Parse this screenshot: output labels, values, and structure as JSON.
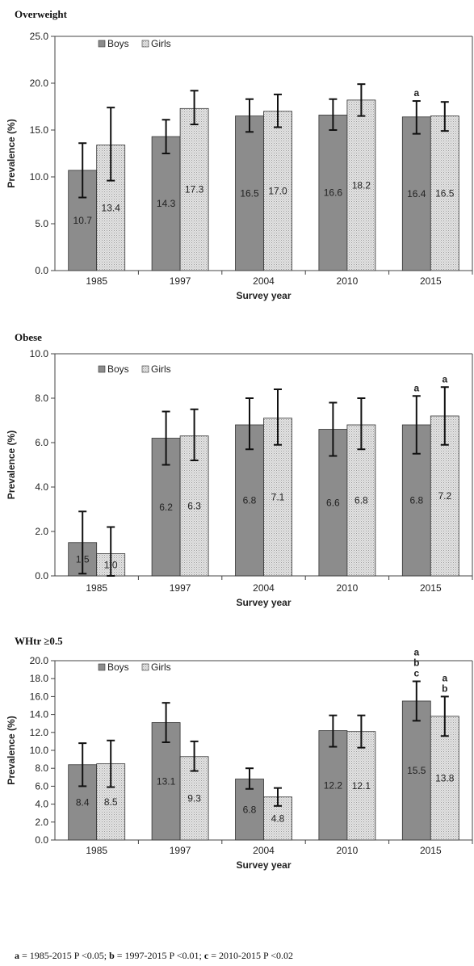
{
  "legend": {
    "boys": "Boys",
    "girls": "Girls"
  },
  "colors": {
    "boys": "#8c8c8c",
    "girls": "#d9d9d9",
    "error": "#111111"
  },
  "chart_data": [
    {
      "type": "bar",
      "title": "Overweight",
      "xlabel": "Survey year",
      "ylabel": "Prevalence (%)",
      "categories": [
        "1985",
        "1997",
        "2004",
        "2010",
        "2015"
      ],
      "ylim": [
        0,
        25
      ],
      "yticks": [
        "0.0",
        "5.0",
        "10.0",
        "15.0",
        "20.0",
        "25.0"
      ],
      "series": [
        {
          "name": "Boys",
          "values": [
            10.7,
            14.3,
            16.5,
            16.6,
            16.4
          ],
          "labels": [
            "10.7",
            "14.3",
            "16.5",
            "16.6",
            "16.4"
          ],
          "err_low": [
            7.8,
            12.5,
            14.8,
            15.0,
            14.6
          ],
          "err_high": [
            13.6,
            16.1,
            18.3,
            18.3,
            18.1
          ]
        },
        {
          "name": "Girls",
          "values": [
            13.4,
            17.3,
            17.0,
            18.2,
            16.5
          ],
          "labels": [
            "13.4",
            "17.3",
            "17.0",
            "18.2",
            "16.5"
          ],
          "err_low": [
            9.6,
            15.6,
            15.3,
            16.5,
            14.9
          ],
          "err_high": [
            17.4,
            19.2,
            18.8,
            19.9,
            18.0
          ]
        }
      ],
      "annotations": [
        {
          "category": "2015",
          "series": 0,
          "text": [
            "a"
          ]
        }
      ]
    },
    {
      "type": "bar",
      "title": "Obese",
      "xlabel": "Survey year",
      "ylabel": "Prevalence (%)",
      "categories": [
        "1985",
        "1997",
        "2004",
        "2010",
        "2015"
      ],
      "ylim": [
        0,
        10
      ],
      "yticks": [
        "0.0",
        "2.0",
        "4.0",
        "6.0",
        "8.0",
        "10.0"
      ],
      "series": [
        {
          "name": "Boys",
          "values": [
            1.5,
            6.2,
            6.8,
            6.6,
            6.8
          ],
          "labels": [
            "1.5",
            "6.2",
            "6.8",
            "6.6",
            "6.8"
          ],
          "err_low": [
            0.1,
            5.0,
            5.7,
            5.4,
            5.5
          ],
          "err_high": [
            2.9,
            7.4,
            8.0,
            7.8,
            8.1
          ]
        },
        {
          "name": "Girls",
          "values": [
            1.0,
            6.3,
            7.1,
            6.8,
            7.2
          ],
          "labels": [
            "1.0",
            "6.3",
            "7.1",
            "6.8",
            "7.2"
          ],
          "err_low": [
            0.0,
            5.2,
            5.9,
            5.7,
            5.9
          ],
          "err_high": [
            2.2,
            7.5,
            8.4,
            8.0,
            8.5
          ]
        }
      ],
      "annotations": [
        {
          "category": "2015",
          "series": 0,
          "text": [
            "a"
          ]
        },
        {
          "category": "2015",
          "series": 1,
          "text": [
            "a"
          ]
        }
      ]
    },
    {
      "type": "bar",
      "title": "WHtr ≥0.5",
      "xlabel": "Survey year",
      "ylabel": "Prevalence (%)",
      "categories": [
        "1985",
        "1997",
        "2004",
        "2010",
        "2015"
      ],
      "ylim": [
        0,
        20
      ],
      "yticks": [
        "0.0",
        "2.0",
        "4.0",
        "6.0",
        "8.0",
        "10.0",
        "12.0",
        "14.0",
        "16.0",
        "18.0",
        "20.0"
      ],
      "series": [
        {
          "name": "Boys",
          "values": [
            8.4,
            13.1,
            6.8,
            12.2,
            15.5
          ],
          "labels": [
            "8.4",
            "13.1",
            "6.8",
            "12.2",
            "15.5"
          ],
          "err_low": [
            6.0,
            10.9,
            5.7,
            10.4,
            13.3
          ],
          "err_high": [
            10.8,
            15.3,
            8.0,
            13.9,
            17.7
          ]
        },
        {
          "name": "Girls",
          "values": [
            8.5,
            9.3,
            4.8,
            12.1,
            13.8
          ],
          "labels": [
            "8.5",
            "9.3",
            "4.8",
            "12.1",
            "13.8"
          ],
          "err_low": [
            5.9,
            7.7,
            3.8,
            10.3,
            11.6
          ],
          "err_high": [
            11.1,
            11.0,
            5.8,
            13.9,
            16.0
          ]
        }
      ],
      "annotations": [
        {
          "category": "2015",
          "series": 0,
          "text": [
            "a",
            "b",
            "c"
          ]
        },
        {
          "category": "2015",
          "series": 1,
          "text": [
            "a",
            "b"
          ]
        }
      ]
    }
  ],
  "footnote": {
    "a_key": "a",
    "a_text": " = 1985-2015 P <0.05;  ",
    "b_key": "b",
    "b_text": " = 1997-2015 P <0.01;  ",
    "c_key": "c",
    "c_text": " = 2010-2015 P <0.02"
  }
}
